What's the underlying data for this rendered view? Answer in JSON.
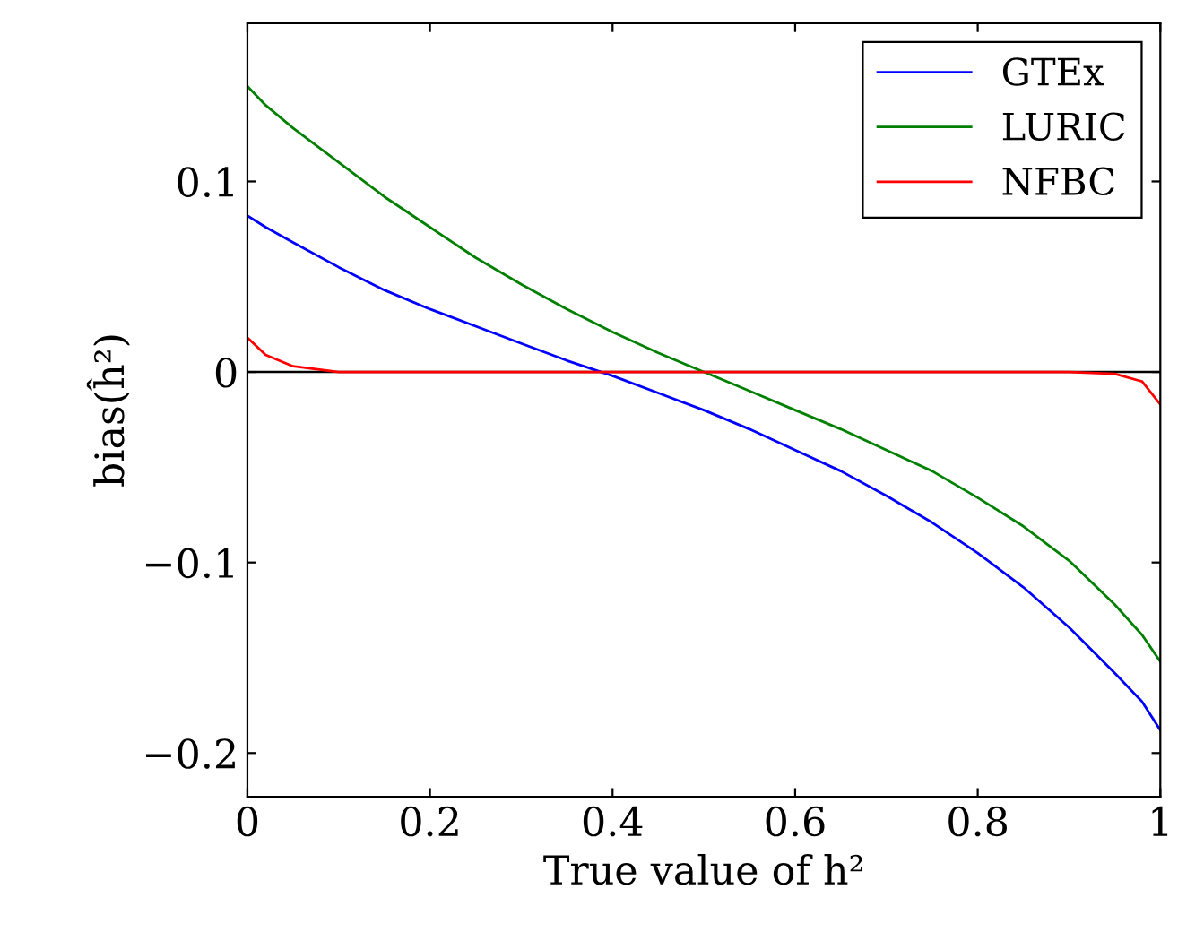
{
  "chart_data": {
    "type": "line",
    "xlabel": "True value of h²",
    "ylabel": "bias(ĥ²)",
    "x": [
      0,
      0.02,
      0.05,
      0.1,
      0.15,
      0.2,
      0.25,
      0.3,
      0.35,
      0.4,
      0.45,
      0.5,
      0.55,
      0.6,
      0.65,
      0.7,
      0.75,
      0.8,
      0.85,
      0.9,
      0.95,
      0.98,
      1.0
    ],
    "series": [
      {
        "name": "GTEx",
        "color": "#0000ff",
        "values": [
          0.082,
          0.076,
          0.068,
          0.055,
          0.043,
          0.033,
          0.024,
          0.015,
          0.006,
          -0.002,
          -0.011,
          -0.02,
          -0.03,
          -0.041,
          -0.052,
          -0.065,
          -0.079,
          -0.095,
          -0.113,
          -0.134,
          -0.158,
          -0.173,
          -0.188
        ]
      },
      {
        "name": "LURIC",
        "color": "#008000",
        "values": [
          0.15,
          0.14,
          0.128,
          0.11,
          0.092,
          0.076,
          0.06,
          0.046,
          0.033,
          0.021,
          0.01,
          0.0,
          -0.01,
          -0.02,
          -0.03,
          -0.041,
          -0.052,
          -0.066,
          -0.081,
          -0.099,
          -0.122,
          -0.138,
          -0.152
        ]
      },
      {
        "name": "NFBC",
        "color": "#ff0000",
        "values": [
          0.018,
          0.009,
          0.003,
          0.0,
          0.0,
          0.0,
          0.0,
          0.0,
          0.0,
          0.0,
          0.0,
          0.0,
          0.0,
          0.0,
          0.0,
          0.0,
          0.0,
          0.0,
          0.0,
          0.0,
          -0.001,
          -0.005,
          -0.017
        ]
      }
    ],
    "xlim": [
      0,
      1
    ],
    "ylim": [
      -0.223,
      0.183
    ],
    "xticks": [
      0,
      0.2,
      0.4,
      0.6,
      0.8,
      1
    ],
    "yticks": [
      {
        "value": -0.2,
        "label": "−0.2"
      },
      {
        "value": -0.1,
        "label": "−0.1"
      },
      0,
      0.1
    ],
    "ref_lines": [
      {
        "axis": "y",
        "value": 0,
        "color": "#000000"
      }
    ],
    "legend": "top right",
    "grid": false,
    "marker": "none",
    "line_style": "solid"
  }
}
